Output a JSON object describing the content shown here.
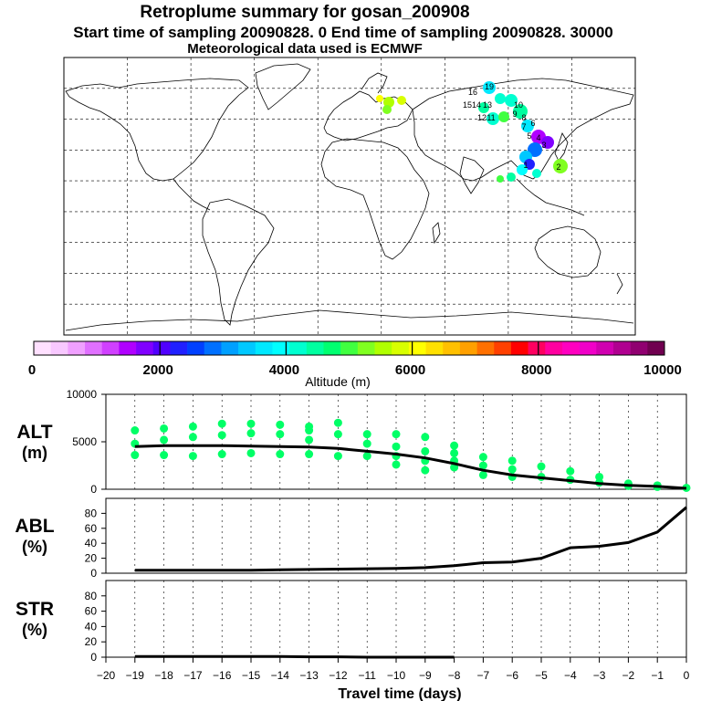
{
  "title": "Retroplume summary for gosan_200908",
  "subtitle_sampling": "Start time of sampling 20090828.     0     End time of sampling 20090828. 30000",
  "subtitle_met": "Meteorological data used is ECMWF",
  "colorbar": {
    "label": "Altitude (m)",
    "ticks": [
      "0",
      "2000",
      "4000",
      "6000",
      "8000",
      "10000"
    ],
    "colors": [
      "#ffe0ff",
      "#f8c8ff",
      "#f0a0ff",
      "#e070ff",
      "#d040ff",
      "#b000ff",
      "#8000ff",
      "#5000ff",
      "#2020ff",
      "#0040ff",
      "#0070ff",
      "#00a0ff",
      "#00c8ff",
      "#00e8ff",
      "#00ffff",
      "#00ffd0",
      "#00ffa0",
      "#00ff70",
      "#40ff40",
      "#80ff20",
      "#b0ff00",
      "#d8ff00",
      "#ffff00",
      "#ffe000",
      "#ffc000",
      "#ffa000",
      "#ff7000",
      "#ff4000",
      "#ff0000",
      "#ff0060",
      "#ff00a0",
      "#ff00c0",
      "#f000c8",
      "#d000b0",
      "#b00090",
      "#900070",
      "#700050"
    ]
  },
  "map": {
    "name": "world-map",
    "labels": [
      "19",
      "16",
      "15",
      "14",
      "13",
      "12",
      "11",
      "10",
      "9",
      "8",
      "7",
      "6",
      "5",
      "4",
      "3",
      "2",
      "1"
    ]
  },
  "chart_data": [
    {
      "type": "scatter",
      "name": "ALT (m)",
      "panel_label": [
        "ALT",
        "(m)"
      ],
      "ylim": [
        0,
        10000
      ],
      "yticks": [
        "10000",
        "5000",
        "0"
      ],
      "x": [
        -19,
        -18,
        -17,
        -16,
        -15,
        -14,
        -13,
        -12,
        -11,
        -10,
        -9,
        -8,
        -7,
        -6,
        -5,
        -4,
        -3,
        -2,
        -1,
        0
      ],
      "mean_line": [
        4500,
        4600,
        4600,
        4600,
        4550,
        4500,
        4450,
        4300,
        4000,
        3700,
        3300,
        2700,
        2000,
        1500,
        1200,
        900,
        600,
        400,
        300,
        100
      ],
      "points": [
        [
          -19,
          6200
        ],
        [
          -19,
          4800
        ],
        [
          -19,
          3600
        ],
        [
          -18,
          6400
        ],
        [
          -18,
          5200
        ],
        [
          -18,
          3600
        ],
        [
          -17,
          6600
        ],
        [
          -17,
          5500
        ],
        [
          -17,
          3500
        ],
        [
          -16,
          6900
        ],
        [
          -16,
          5700
        ],
        [
          -16,
          3700
        ],
        [
          -15,
          6900
        ],
        [
          -15,
          5900
        ],
        [
          -15,
          3800
        ],
        [
          -14,
          6800
        ],
        [
          -14,
          5800
        ],
        [
          -14,
          3700
        ],
        [
          -13,
          6600
        ],
        [
          -13,
          6200
        ],
        [
          -13,
          5200
        ],
        [
          -13,
          3700
        ],
        [
          -12,
          7000
        ],
        [
          -12,
          5800
        ],
        [
          -12,
          3500
        ],
        [
          -11,
          5800
        ],
        [
          -11,
          4800
        ],
        [
          -11,
          3500
        ],
        [
          -10,
          5800
        ],
        [
          -10,
          4500
        ],
        [
          -10,
          3500
        ],
        [
          -10,
          2600
        ],
        [
          -9,
          5500
        ],
        [
          -9,
          4000
        ],
        [
          -9,
          3000
        ],
        [
          -9,
          2000
        ],
        [
          -8,
          4600
        ],
        [
          -8,
          3800
        ],
        [
          -8,
          3000
        ],
        [
          -8,
          2300
        ],
        [
          -7,
          3400
        ],
        [
          -7,
          2500
        ],
        [
          -7,
          1500
        ],
        [
          -6,
          3000
        ],
        [
          -6,
          2100
        ],
        [
          -6,
          1300
        ],
        [
          -5,
          2400
        ],
        [
          -5,
          1300
        ],
        [
          -4,
          1900
        ],
        [
          -4,
          1000
        ],
        [
          -3,
          1300
        ],
        [
          -3,
          700
        ],
        [
          -2,
          600
        ],
        [
          -2,
          350
        ],
        [
          -1,
          400
        ],
        [
          -1,
          250
        ],
        [
          0,
          150
        ]
      ],
      "point_color": "#00ff66"
    },
    {
      "type": "line",
      "name": "ABL (%)",
      "panel_label": [
        "ABL",
        "(%)"
      ],
      "ylim": [
        0,
        100
      ],
      "yticks": [
        "80",
        "60",
        "40",
        "20",
        "0"
      ],
      "x": [
        -19,
        -18,
        -17,
        -16,
        -15,
        -14,
        -13,
        -12,
        -11,
        -10,
        -9,
        -8,
        -7,
        -6,
        -5,
        -4,
        -3,
        -2,
        -1,
        0
      ],
      "values": [
        4,
        4,
        4,
        4,
        4,
        4.5,
        5,
        5.5,
        6,
        6.5,
        7.5,
        10,
        14,
        15,
        20,
        34,
        36,
        41,
        55,
        88
      ]
    },
    {
      "type": "line",
      "name": "STR (%)",
      "panel_label": [
        "STR",
        "(%)"
      ],
      "ylim": [
        0,
        100
      ],
      "yticks": [
        "80",
        "60",
        "40",
        "20",
        "0"
      ],
      "x": [
        -19,
        -18,
        -17,
        -16,
        -15,
        -14,
        -13,
        -12,
        -11,
        -10,
        -9,
        -8
      ],
      "values": [
        1,
        1,
        1,
        1,
        1,
        1,
        0.5,
        0.5,
        0,
        0,
        0,
        0
      ]
    }
  ],
  "xaxis": {
    "label": "Travel time (days)",
    "ticks": [
      "−20",
      "−19",
      "−18",
      "−17",
      "−16",
      "−15",
      "−14",
      "−13",
      "−12",
      "−11",
      "−10",
      "−9",
      "−8",
      "−7",
      "−6",
      "−5",
      "−4",
      "−3",
      "−2",
      "−1",
      "0"
    ],
    "xlim": [
      -20,
      0
    ]
  }
}
